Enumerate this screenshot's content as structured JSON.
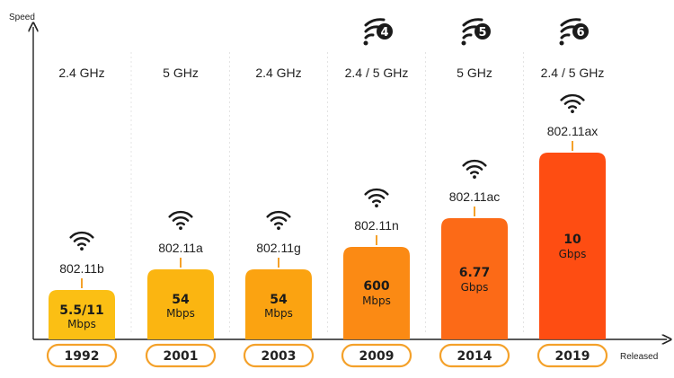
{
  "chart_data": {
    "type": "bar",
    "ylabel": "Speed",
    "xlabel": "Released",
    "categories": [
      "1992",
      "2001",
      "2003",
      "2009",
      "2014",
      "2019"
    ],
    "standards": [
      "802.11b",
      "802.11a",
      "802.11g",
      "802.11n",
      "802.11ac",
      "802.11ax"
    ],
    "frequencies": [
      "2.4 GHz",
      "5 GHz",
      "2.4 GHz",
      "2.4 / 5 GHz",
      "5 GHz",
      "2.4 / 5 GHz"
    ],
    "value_labels": [
      {
        "value": "5.5/11",
        "unit": "Mbps"
      },
      {
        "value": "54",
        "unit": "Mbps"
      },
      {
        "value": "54",
        "unit": "Mbps"
      },
      {
        "value": "600",
        "unit": "Mbps"
      },
      {
        "value": "6.77",
        "unit": "Gbps"
      },
      {
        "value": "10",
        "unit": "Gbps"
      }
    ],
    "generation_badges": [
      "",
      "",
      "",
      "4",
      "5",
      "6"
    ],
    "bar_colors": [
      "#fbbf14",
      "#fbb511",
      "#fba311",
      "#fb8a14",
      "#fc6a17",
      "#fe4d12"
    ],
    "value_text_colors": [
      "#1a1a1a",
      "#1a1a1a",
      "#1a1a1a",
      "#1a1a1a",
      "#1a1a1a",
      "#1a1a1a"
    ],
    "accent_color": "#f4a12a"
  }
}
